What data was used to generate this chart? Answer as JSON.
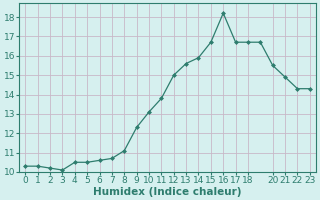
{
  "x": [
    0,
    1,
    2,
    3,
    4,
    5,
    6,
    7,
    8,
    9,
    10,
    11,
    12,
    13,
    14,
    15,
    16,
    17,
    18,
    19,
    20,
    21,
    22,
    23
  ],
  "y": [
    10.3,
    10.3,
    10.2,
    10.1,
    10.5,
    10.5,
    10.6,
    10.7,
    11.1,
    12.3,
    13.1,
    13.8,
    15.0,
    15.6,
    15.9,
    16.7,
    18.2,
    16.7,
    16.7,
    16.7,
    15.5,
    14.9,
    14.3,
    14.3
  ],
  "line_color": "#2e7d6e",
  "marker": "D",
  "marker_size": 2,
  "bg_color": "#d6f0ef",
  "grid_color": "#c8b8c8",
  "tick_color": "#2e7d6e",
  "xlabel": "Humidex (Indice chaleur)",
  "xlim": [
    -0.5,
    23.5
  ],
  "ylim": [
    10,
    18.7
  ],
  "yticks": [
    10,
    11,
    12,
    13,
    14,
    15,
    16,
    17,
    18
  ],
  "xticks": [
    0,
    1,
    2,
    3,
    4,
    5,
    6,
    7,
    8,
    9,
    10,
    11,
    12,
    13,
    14,
    15,
    16,
    17,
    18,
    20,
    21,
    22,
    23
  ],
  "font_size": 6.5,
  "xlabel_fontsize": 7.5
}
